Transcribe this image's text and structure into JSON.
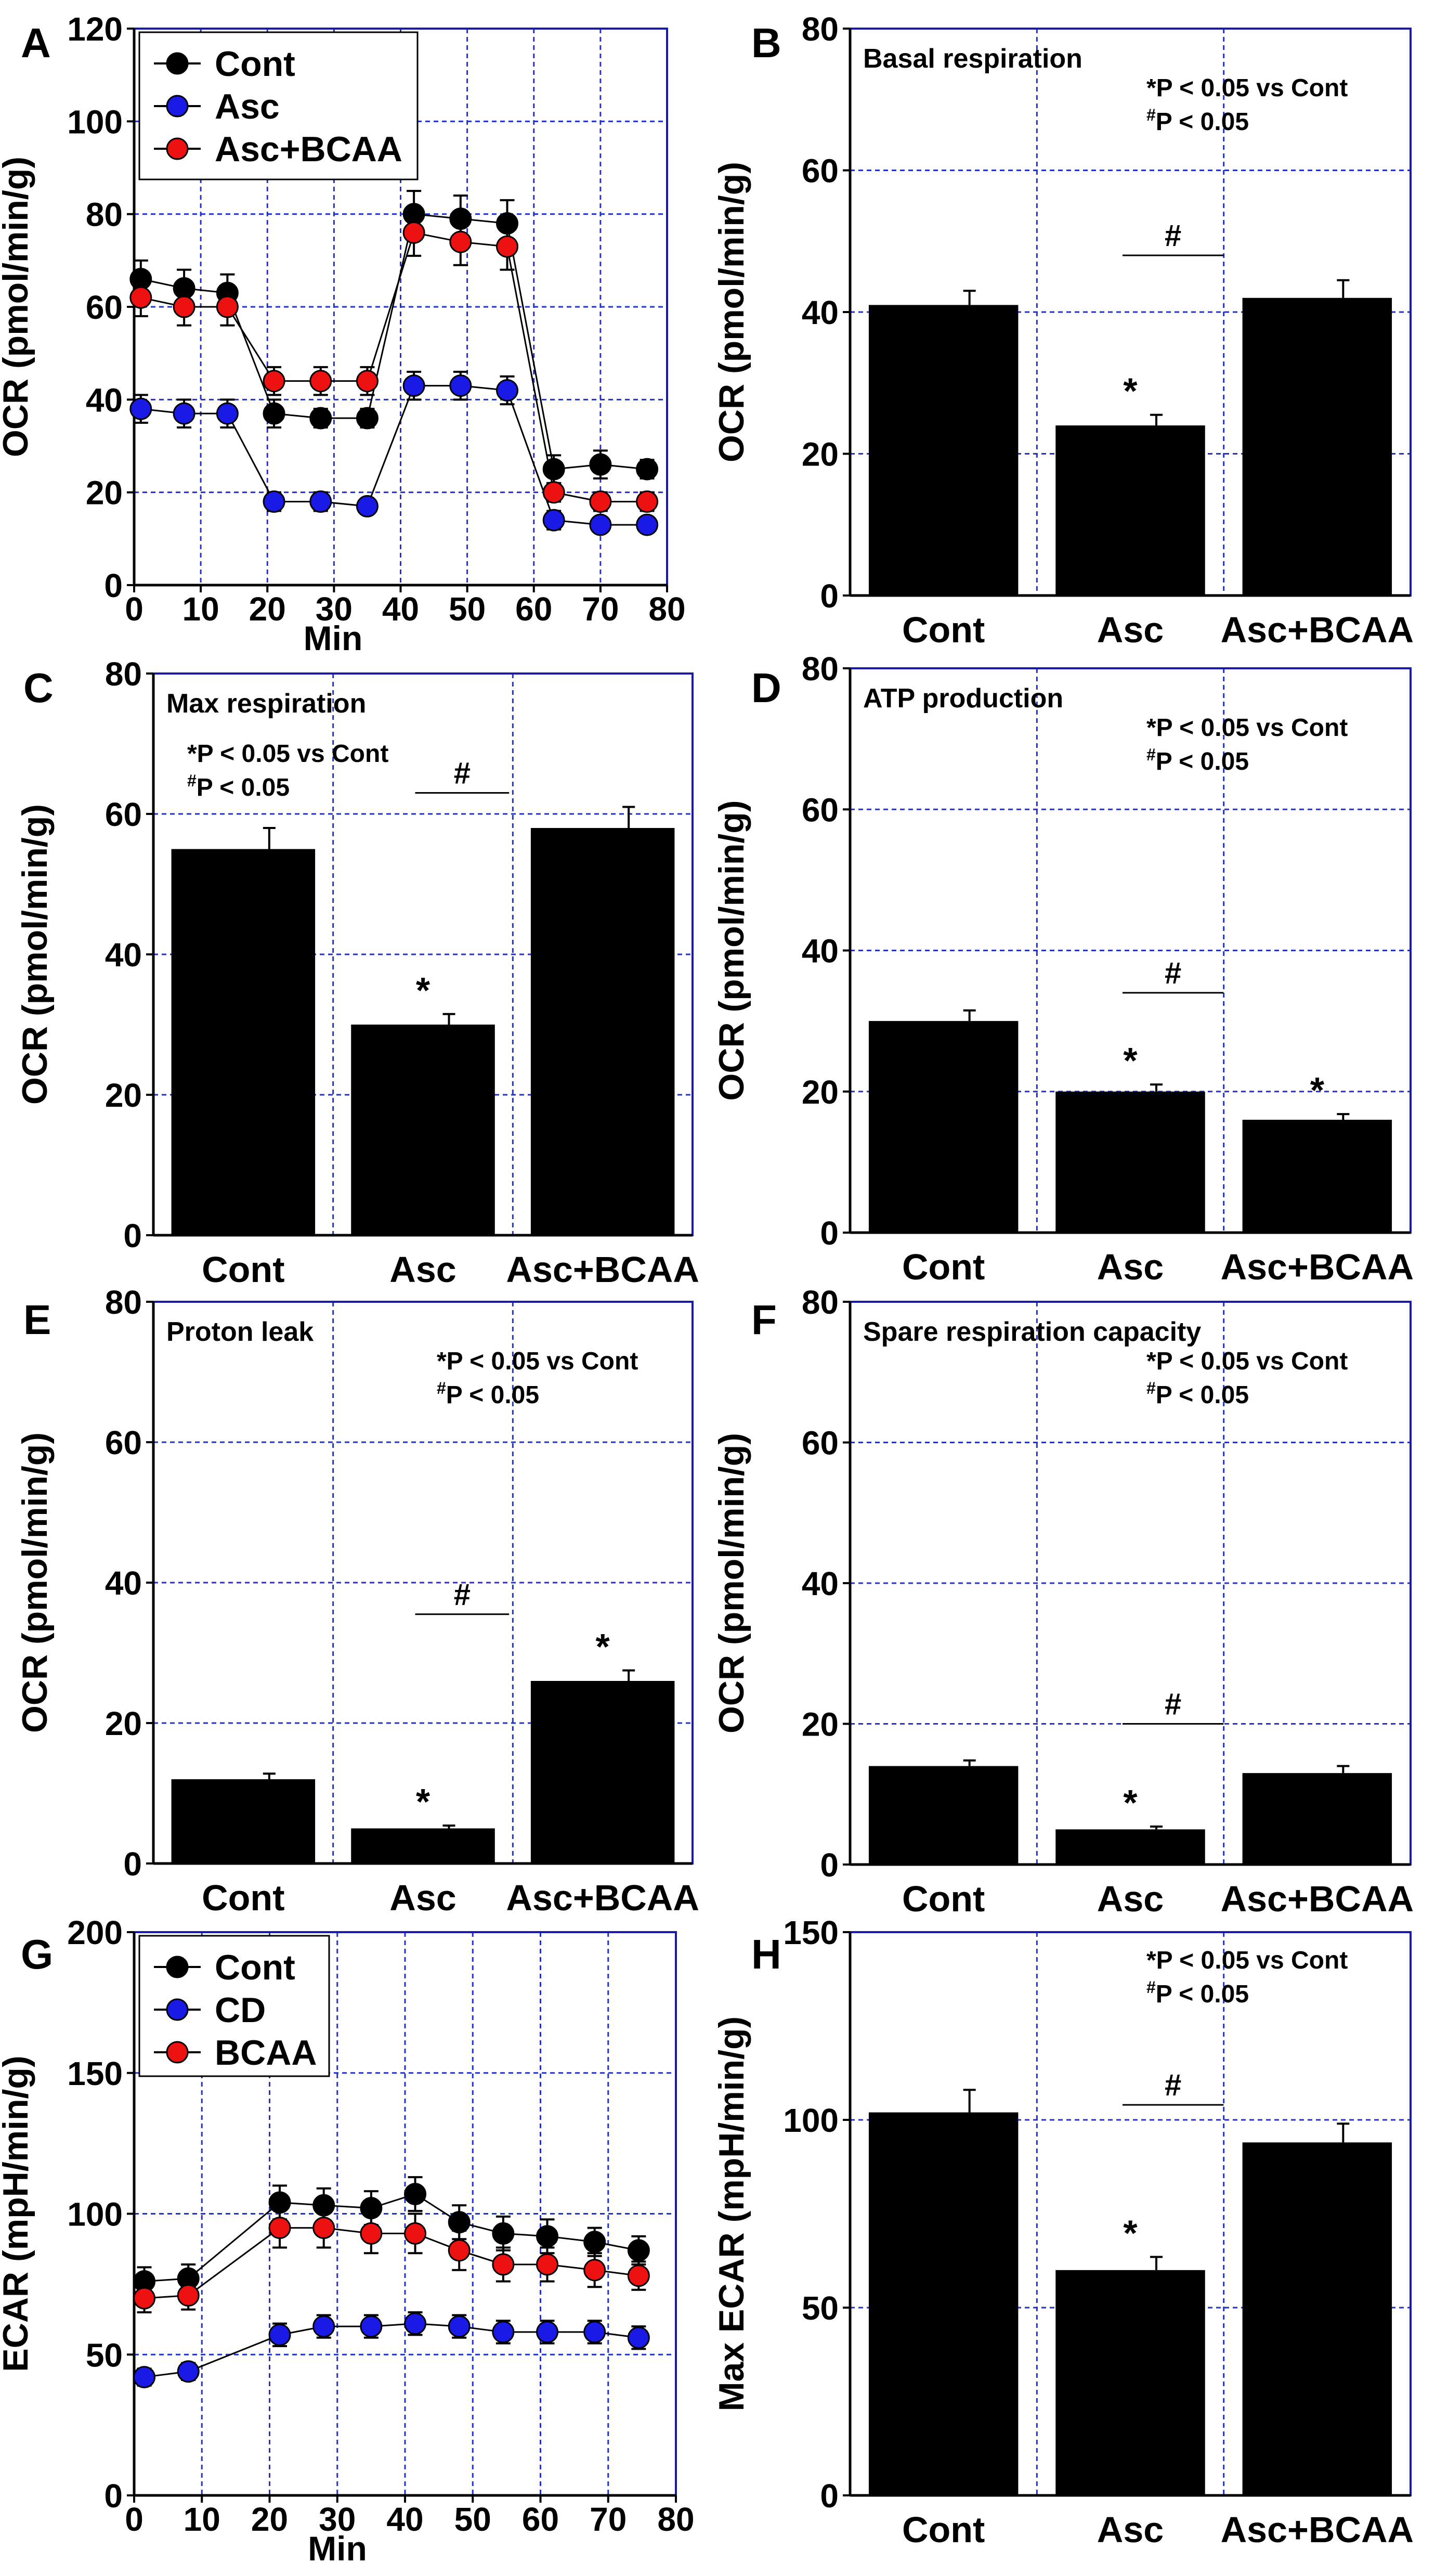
{
  "chart_data": [
    {
      "id": "A",
      "type": "line",
      "panel_label": "A",
      "xlabel": "Min",
      "ylabel": "OCR (pmol/min/g)",
      "xlim": [
        0,
        80
      ],
      "ylim": [
        0,
        120
      ],
      "xticks": [
        0,
        10,
        20,
        30,
        40,
        50,
        60,
        70,
        80
      ],
      "yticks": [
        0,
        20,
        40,
        60,
        80,
        100,
        120
      ],
      "x": [
        1,
        7.5,
        14,
        21,
        28,
        35,
        42,
        49,
        56,
        63,
        70,
        77
      ],
      "series": [
        {
          "name": "Cont",
          "color": "#000000",
          "values": [
            66,
            64,
            63,
            37,
            36,
            36,
            80,
            79,
            78,
            25,
            26,
            25
          ],
          "errors": [
            4,
            4,
            4,
            3,
            2,
            2,
            5,
            5,
            5,
            3,
            3,
            2
          ]
        },
        {
          "name": "Asc",
          "color": "#1a1ae6",
          "values": [
            38,
            37,
            37,
            18,
            18,
            17,
            43,
            43,
            42,
            14,
            13,
            13
          ],
          "errors": [
            3,
            3,
            3,
            2,
            2,
            1,
            3,
            3,
            3,
            2,
            1,
            1
          ]
        },
        {
          "name": "Asc+BCAA",
          "color": "#ee1111",
          "values": [
            62,
            60,
            60,
            44,
            44,
            44,
            76,
            74,
            73,
            20,
            18,
            18
          ],
          "errors": [
            4,
            4,
            4,
            3,
            3,
            3,
            5,
            5,
            5,
            2,
            2,
            2
          ]
        }
      ]
    },
    {
      "id": "B",
      "type": "bar",
      "panel_label": "B",
      "title": "Basal respiration",
      "ylabel": "OCR (pmol/min/g)",
      "ylim": [
        0,
        80
      ],
      "yticks": [
        0,
        20,
        40,
        60,
        80
      ],
      "categories": [
        "Cont",
        "Asc",
        "Asc+BCAA"
      ],
      "values": [
        41,
        24,
        42
      ],
      "errors": [
        2,
        1.5,
        2.5
      ],
      "sig_marks": [
        "",
        "*",
        ""
      ],
      "note_line1": "*P < 0.05 vs Cont",
      "note_line2_sup": "#",
      "note_line2": "P < 0.05",
      "comparison": {
        "from": 1,
        "to": 2,
        "y": 48,
        "mark": "#"
      }
    },
    {
      "id": "C",
      "type": "bar",
      "panel_label": "C",
      "title": "Max respiration",
      "ylabel": "OCR (pmol/min/g)",
      "ylim": [
        0,
        80
      ],
      "yticks": [
        0,
        20,
        40,
        60,
        80
      ],
      "categories": [
        "Cont",
        "Asc",
        "Asc+BCAA"
      ],
      "values": [
        55,
        30,
        58
      ],
      "errors": [
        3,
        1.5,
        3
      ],
      "sig_marks": [
        "",
        "*",
        ""
      ],
      "note_line1": "*P < 0.05 vs Cont",
      "note_line2_sup": "#",
      "note_line2": "P < 0.05",
      "comparison": {
        "from": 1,
        "to": 2,
        "y": 63,
        "mark": "#"
      }
    },
    {
      "id": "D",
      "type": "bar",
      "panel_label": "D",
      "title": "ATP production",
      "ylabel": "OCR (pmol/min/g)",
      "ylim": [
        0,
        80
      ],
      "yticks": [
        0,
        20,
        40,
        60,
        80
      ],
      "categories": [
        "Cont",
        "Asc",
        "Asc+BCAA"
      ],
      "values": [
        30,
        20,
        16
      ],
      "errors": [
        1.5,
        1,
        0.8
      ],
      "sig_marks": [
        "",
        "*",
        "*"
      ],
      "note_line1": "*P < 0.05 vs Cont",
      "note_line2_sup": "#",
      "note_line2": "P < 0.05",
      "comparison": {
        "from": 1,
        "to": 2,
        "y": 34,
        "mark": "#"
      }
    },
    {
      "id": "E",
      "type": "bar",
      "panel_label": "E",
      "title": "Proton leak",
      "ylabel": "OCR (pmol/min/g)",
      "ylim": [
        0,
        80
      ],
      "yticks": [
        0,
        20,
        40,
        60,
        80
      ],
      "categories": [
        "Cont",
        "Asc",
        "Asc+BCAA"
      ],
      "values": [
        12,
        5,
        26
      ],
      "errors": [
        0.8,
        0.4,
        1.5
      ],
      "sig_marks": [
        "",
        "*",
        "*"
      ],
      "note_line1": "*P < 0.05 vs Cont",
      "note_line2_sup": "#",
      "note_line2": "P < 0.05",
      "comparison": {
        "from": 1,
        "to": 2,
        "y": 35.5,
        "mark": "#"
      }
    },
    {
      "id": "F",
      "type": "bar",
      "panel_label": "F",
      "title": "Spare respiration capacity",
      "ylabel": "OCR (pmol/min/g)",
      "ylim": [
        0,
        80
      ],
      "yticks": [
        0,
        20,
        40,
        60,
        80
      ],
      "categories": [
        "Cont",
        "Asc",
        "Asc+BCAA"
      ],
      "values": [
        14,
        5,
        13
      ],
      "errors": [
        0.8,
        0.4,
        1
      ],
      "sig_marks": [
        "",
        "*",
        ""
      ],
      "note_line1": "*P < 0.05 vs Cont",
      "note_line2_sup": "#",
      "note_line2": "P < 0.05",
      "comparison": {
        "from": 1,
        "to": 2,
        "y": 20,
        "mark": "#"
      }
    },
    {
      "id": "G",
      "type": "line",
      "panel_label": "G",
      "xlabel": "Min",
      "ylabel": "ECAR (mpH/min/g)",
      "xlim": [
        0,
        80
      ],
      "ylim": [
        0,
        200
      ],
      "xticks": [
        0,
        10,
        20,
        30,
        40,
        50,
        60,
        70,
        80
      ],
      "yticks": [
        0,
        50,
        100,
        150,
        200
      ],
      "x": [
        1.5,
        8,
        21.5,
        28,
        35,
        41.5,
        48,
        54.5,
        61,
        68,
        74.5
      ],
      "series": [
        {
          "name": "Cont",
          "color": "#000000",
          "values": [
            76,
            77,
            104,
            103,
            102,
            107,
            97,
            93,
            92,
            90,
            87
          ],
          "errors": [
            5,
            5,
            6,
            6,
            6,
            6,
            6,
            6,
            6,
            5,
            5
          ]
        },
        {
          "name": "CD",
          "color": "#1a1ae6",
          "values": [
            42,
            44,
            57,
            60,
            60,
            61,
            60,
            58,
            58,
            58,
            56
          ],
          "errors": [
            3,
            3,
            4,
            4,
            4,
            4,
            4,
            4,
            4,
            4,
            4
          ]
        },
        {
          "name": "BCAA",
          "color": "#ee1111",
          "values": [
            70,
            71,
            95,
            95,
            93,
            93,
            87,
            82,
            82,
            80,
            78
          ],
          "errors": [
            5,
            5,
            7,
            7,
            7,
            7,
            7,
            6,
            6,
            6,
            5
          ]
        }
      ]
    },
    {
      "id": "H",
      "type": "bar",
      "panel_label": "H",
      "ylabel": "Max ECAR (mpH/min/g)",
      "ylim": [
        0,
        150
      ],
      "yticks": [
        0,
        50,
        100,
        150
      ],
      "categories": [
        "Cont",
        "Asc",
        "Asc+BCAA"
      ],
      "values": [
        102,
        60,
        94
      ],
      "errors": [
        6,
        3.5,
        5
      ],
      "sig_marks": [
        "",
        "*",
        ""
      ],
      "note_line1": "*P < 0.05 vs Cont",
      "note_line2_sup": "#",
      "note_line2": "P < 0.05",
      "comparison": {
        "from": 1,
        "to": 2,
        "y": 104,
        "mark": "#"
      }
    }
  ]
}
